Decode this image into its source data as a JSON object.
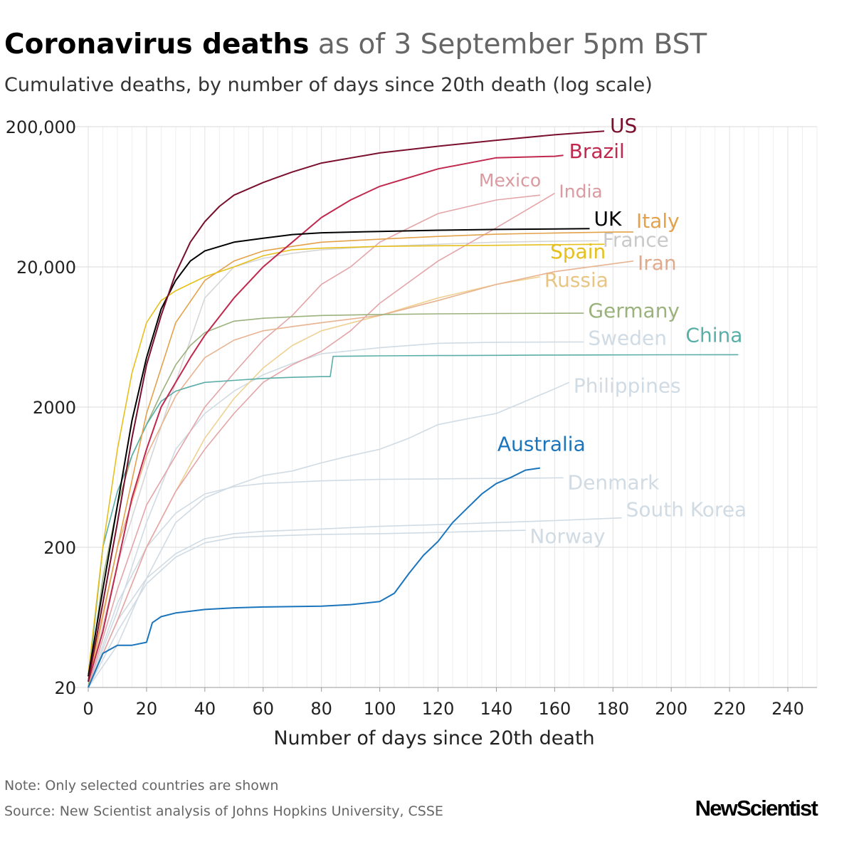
{
  "header": {
    "title_bold": "Coronavirus deaths",
    "title_light": "as of 3 September 5pm BST",
    "subtitle": "Cumulative deaths, by number of days since 20th death (log scale)"
  },
  "footer": {
    "note": "Note: Only selected countries are shown",
    "source": "Source: New Scientist analysis of Johns Hopkins University, CSSE",
    "logo": "NewScientist"
  },
  "chart_data": {
    "type": "line",
    "title": "Coronavirus deaths as of 3 September 5pm BST",
    "subtitle": "Cumulative deaths, by number of days since 20th death (log scale)",
    "xlabel": "Number of days since 20th death",
    "ylabel": "",
    "xlim": [
      0,
      250
    ],
    "ylim": [
      20,
      200000
    ],
    "y_scale": "log",
    "x_ticks": [
      0,
      20,
      40,
      60,
      80,
      100,
      120,
      140,
      160,
      180,
      200,
      220,
      240
    ],
    "x_tick_labels": [
      "0",
      "20",
      "40",
      "60",
      "80",
      "100",
      "120",
      "140",
      "160",
      "180",
      "200",
      "220",
      "240"
    ],
    "y_ticks": [
      20,
      200,
      2000,
      20000,
      200000
    ],
    "y_tick_labels": [
      "20",
      "200",
      "2000",
      "20,000",
      "200,000"
    ],
    "grid": true,
    "legend": "direct labels at line ends",
    "series": [
      {
        "name": "US",
        "color": "#7a0f2e",
        "x": [
          0,
          5,
          10,
          15,
          20,
          25,
          30,
          35,
          40,
          45,
          50,
          60,
          70,
          80,
          100,
          120,
          140,
          160,
          177
        ],
        "y": [
          22,
          80,
          300,
          1200,
          4000,
          9000,
          18000,
          30000,
          42000,
          54000,
          65000,
          80000,
          95000,
          110000,
          130000,
          145000,
          160000,
          175000,
          186000
        ]
      },
      {
        "name": "Brazil",
        "color": "#c1284d",
        "x": [
          0,
          5,
          10,
          15,
          20,
          25,
          30,
          35,
          40,
          50,
          60,
          70,
          80,
          90,
          100,
          120,
          140,
          160,
          163
        ],
        "y": [
          22,
          50,
          150,
          450,
          1000,
          2000,
          3000,
          4500,
          6500,
          12000,
          20000,
          30000,
          45000,
          60000,
          75000,
          100000,
          120000,
          123000,
          125000
        ]
      },
      {
        "name": "Mexico",
        "color": "#e4a5a8",
        "x": [
          0,
          10,
          20,
          30,
          40,
          50,
          60,
          70,
          80,
          90,
          100,
          120,
          140,
          155
        ],
        "y": [
          20,
          100,
          400,
          900,
          2000,
          3500,
          6000,
          9000,
          15000,
          20000,
          30000,
          48000,
          60000,
          65000
        ]
      },
      {
        "name": "India",
        "color": "#e4a5a8",
        "x": [
          0,
          10,
          20,
          30,
          40,
          50,
          60,
          70,
          80,
          90,
          100,
          120,
          140,
          160
        ],
        "y": [
          20,
          60,
          200,
          500,
          1000,
          1800,
          3000,
          4000,
          5000,
          7000,
          11000,
          22000,
          38000,
          67000
        ]
      },
      {
        "name": "UK",
        "color": "#000000",
        "x": [
          0,
          5,
          10,
          15,
          20,
          25,
          30,
          35,
          40,
          50,
          60,
          70,
          80,
          100,
          120,
          140,
          160,
          172
        ],
        "y": [
          24,
          100,
          400,
          1600,
          4500,
          10000,
          16000,
          22000,
          26000,
          30000,
          32000,
          34000,
          35000,
          35800,
          36500,
          37000,
          37300,
          37500
        ]
      },
      {
        "name": "Italy",
        "color": "#e3a24a",
        "x": [
          0,
          10,
          20,
          30,
          40,
          50,
          60,
          70,
          80,
          100,
          120,
          140,
          160,
          180,
          187
        ],
        "y": [
          22,
          200,
          1800,
          8000,
          16000,
          22000,
          26000,
          28000,
          30000,
          31500,
          33000,
          34200,
          34900,
          35400,
          35500
        ]
      },
      {
        "name": "France",
        "color": "#d6d6d6",
        "x": [
          0,
          10,
          20,
          30,
          40,
          50,
          60,
          70,
          80,
          100,
          120,
          140,
          160,
          175
        ],
        "y": [
          20,
          150,
          700,
          3000,
          12000,
          20000,
          23000,
          25000,
          26500,
          28000,
          29000,
          30000,
          30500,
          30700
        ]
      },
      {
        "name": "Spain",
        "color": "#e6c01d",
        "x": [
          0,
          5,
          10,
          15,
          20,
          25,
          30,
          40,
          50,
          60,
          70,
          80,
          100,
          120,
          140,
          160,
          177
        ],
        "y": [
          25,
          200,
          1000,
          3500,
          8000,
          11500,
          13500,
          17000,
          20000,
          24000,
          26500,
          27200,
          28000,
          28300,
          28500,
          28800,
          29000
        ]
      },
      {
        "name": "Iran",
        "color": "#e8b390",
        "x": [
          0,
          10,
          20,
          30,
          40,
          50,
          60,
          70,
          80,
          100,
          120,
          140,
          160,
          187
        ],
        "y": [
          20,
          200,
          900,
          2400,
          4500,
          6000,
          7000,
          7500,
          8000,
          9000,
          11500,
          15000,
          18500,
          22000
        ]
      },
      {
        "name": "Russia",
        "color": "#efd293",
        "x": [
          0,
          10,
          20,
          30,
          40,
          50,
          60,
          70,
          80,
          100,
          120,
          140,
          155
        ],
        "y": [
          20,
          60,
          200,
          500,
          1200,
          2300,
          3800,
          5500,
          7000,
          9000,
          12000,
          15000,
          17000
        ]
      },
      {
        "name": "Germany",
        "color": "#9bb27c",
        "x": [
          0,
          5,
          10,
          15,
          20,
          25,
          30,
          35,
          40,
          50,
          60,
          70,
          80,
          100,
          120,
          140,
          160,
          170
        ],
        "y": [
          20,
          120,
          400,
          900,
          1500,
          2500,
          4000,
          5500,
          6800,
          8200,
          8600,
          8800,
          9000,
          9150,
          9250,
          9300,
          9330,
          9350
        ]
      },
      {
        "name": "Sweden",
        "color": "#d0dbe4",
        "x": [
          0,
          10,
          20,
          30,
          40,
          50,
          60,
          70,
          80,
          100,
          120,
          140,
          160,
          170
        ],
        "y": [
          20,
          70,
          300,
          1000,
          1800,
          2600,
          3400,
          4100,
          4800,
          5300,
          5700,
          5800,
          5820,
          5830
        ]
      },
      {
        "name": "China",
        "color": "#5aaea8",
        "x": [
          0,
          5,
          10,
          15,
          20,
          25,
          30,
          35,
          40,
          50,
          60,
          70,
          80,
          83,
          84,
          100,
          120,
          140,
          160,
          180,
          200,
          223
        ],
        "y": [
          22,
          200,
          500,
          900,
          1500,
          2200,
          2600,
          2800,
          3000,
          3100,
          3200,
          3260,
          3300,
          3300,
          4600,
          4640,
          4660,
          4680,
          4700,
          4710,
          4720,
          4730
        ]
      },
      {
        "name": "Philippines",
        "color": "#d0dbe4",
        "x": [
          0,
          10,
          20,
          30,
          40,
          50,
          60,
          70,
          80,
          90,
          100,
          110,
          120,
          130,
          140,
          150,
          160,
          165
        ],
        "y": [
          20,
          40,
          120,
          300,
          450,
          550,
          650,
          700,
          800,
          900,
          1000,
          1200,
          1500,
          1650,
          1800,
          2200,
          2700,
          3000
        ]
      },
      {
        "name": "Australia",
        "color": "#1b75bc",
        "x": [
          0,
          5,
          10,
          15,
          20,
          22,
          25,
          30,
          40,
          50,
          60,
          80,
          90,
          100,
          105,
          110,
          115,
          120,
          125,
          130,
          135,
          140,
          145,
          150,
          155
        ],
        "y": [
          20,
          35,
          40,
          40,
          42,
          58,
          64,
          68,
          72,
          74,
          75,
          76,
          78,
          82,
          94,
          130,
          175,
          220,
          300,
          380,
          480,
          570,
          630,
          710,
          735
        ]
      },
      {
        "name": "Denmark",
        "color": "#d0dbe4",
        "x": [
          0,
          10,
          20,
          30,
          40,
          50,
          60,
          80,
          100,
          120,
          140,
          160,
          163
        ],
        "y": [
          20,
          80,
          200,
          350,
          480,
          540,
          570,
          595,
          610,
          615,
          620,
          625,
          626
        ]
      },
      {
        "name": "South Korea",
        "color": "#d0dbe4",
        "x": [
          0,
          10,
          20,
          30,
          40,
          50,
          60,
          80,
          100,
          120,
          140,
          160,
          183
        ],
        "y": [
          20,
          60,
          120,
          180,
          230,
          250,
          260,
          270,
          282,
          290,
          300,
          310,
          324
        ]
      },
      {
        "name": "Norway",
        "color": "#d0dbe4",
        "x": [
          0,
          10,
          20,
          30,
          40,
          50,
          60,
          80,
          100,
          120,
          140,
          150
        ],
        "y": [
          20,
          50,
          110,
          170,
          215,
          235,
          240,
          247,
          250,
          255,
          262,
          264
        ]
      }
    ]
  }
}
